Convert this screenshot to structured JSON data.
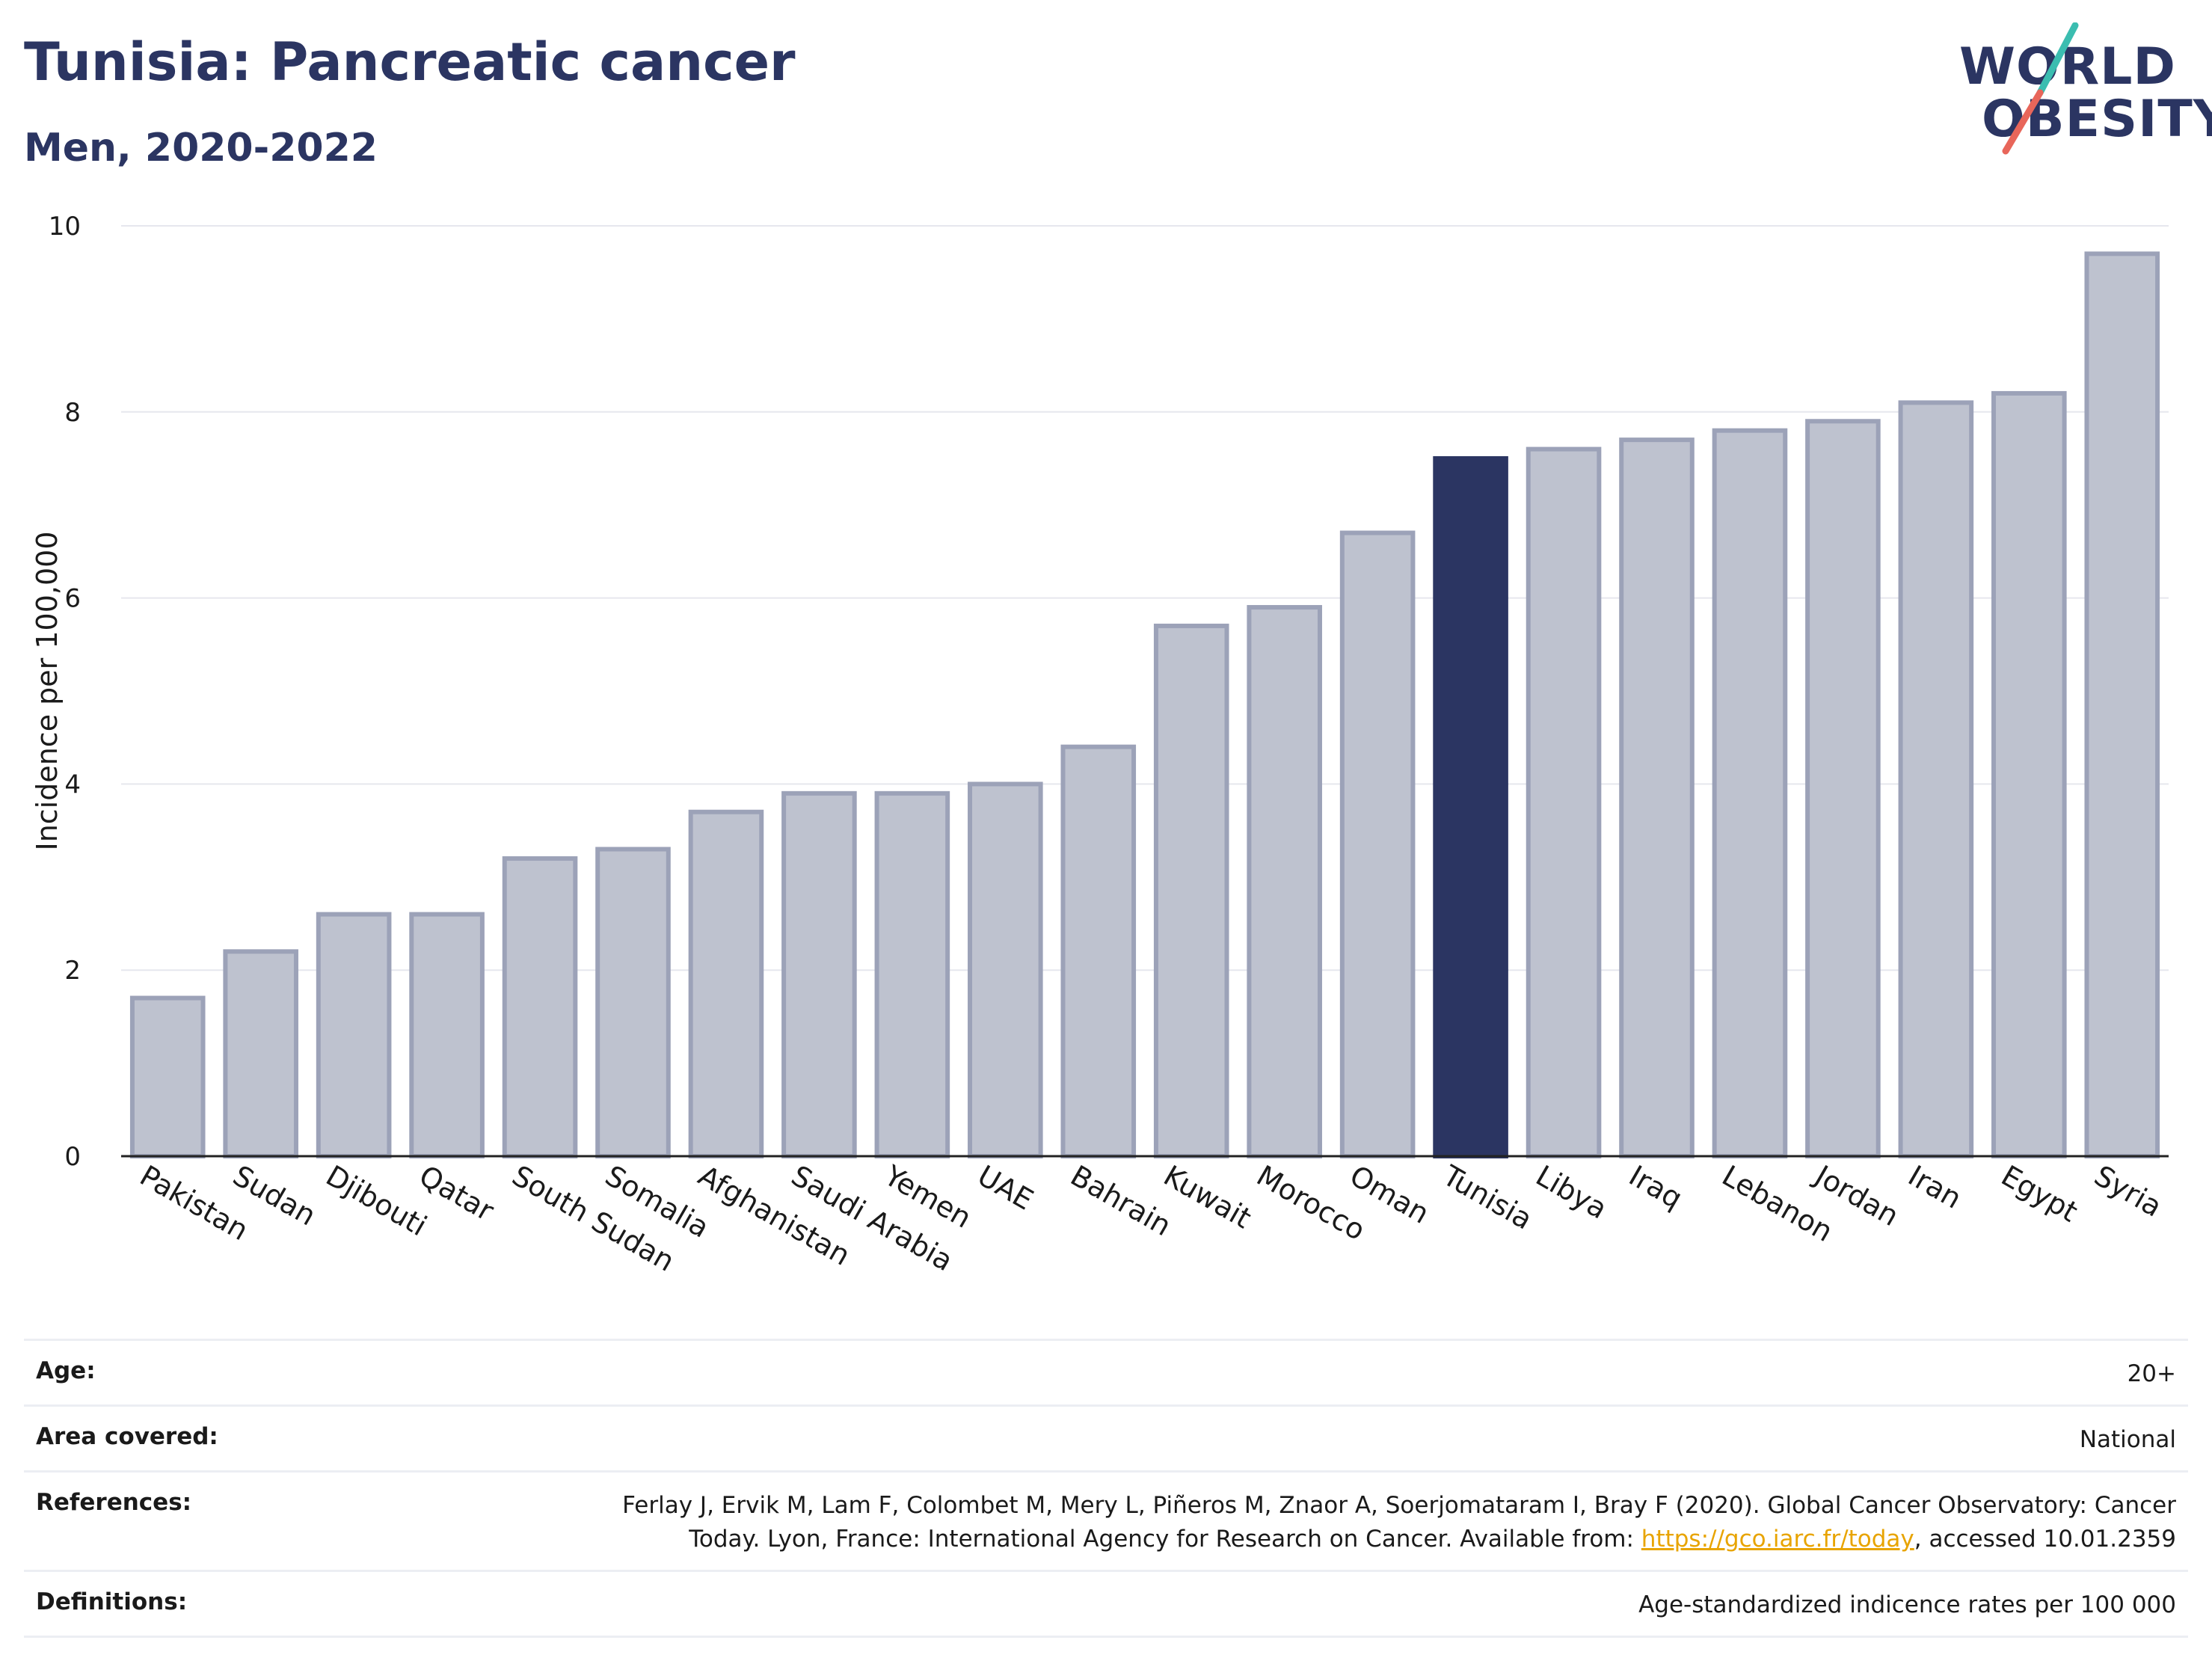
{
  "header": {
    "title": "Tunisia: Pancreatic cancer",
    "subtitle": "Men, 2020-2022"
  },
  "logo": {
    "line1": "WORLD",
    "line2": "OBESITY",
    "accent_colors": [
      "#3bbdb0",
      "#e8665a"
    ]
  },
  "colors": {
    "highlight": "#2b3562",
    "bar_fill": "#bec2cf",
    "bar_stroke": "#9ca2b8",
    "grid": "#e6e7ee",
    "link": "#e8a400"
  },
  "chart_data": {
    "type": "bar",
    "ylabel": "Incidence per 100,000",
    "ylim": [
      0,
      10
    ],
    "yticks": [
      0,
      2,
      4,
      6,
      8,
      10
    ],
    "categories": [
      "Pakistan",
      "Sudan",
      "Djibouti",
      "Qatar",
      "South Sudan",
      "Somalia",
      "Afghanistan",
      "Saudi Arabia",
      "Yemen",
      "UAE",
      "Bahrain",
      "Kuwait",
      "Morocco",
      "Oman",
      "Tunisia",
      "Libya",
      "Iraq",
      "Lebanon",
      "Jordan",
      "Iran",
      "Egypt",
      "Syria"
    ],
    "values": [
      1.7,
      2.2,
      2.6,
      2.6,
      3.2,
      3.3,
      3.7,
      3.9,
      3.9,
      4.0,
      4.4,
      5.7,
      5.9,
      6.7,
      7.5,
      7.6,
      7.7,
      7.8,
      7.9,
      8.1,
      8.2,
      9.7
    ],
    "highlight": "Tunisia",
    "grid": true
  },
  "meta": {
    "age_label": "Age:",
    "age_value": "20+",
    "area_label": "Area covered:",
    "area_value": "National",
    "references_label": "References:",
    "references_line1": "Ferlay J, Ervik M, Lam F, Colombet M, Mery L, Piñeros M, Znaor A, Soerjomataram I, Bray F (2020). Global Cancer Observatory: Cancer",
    "references_line2_pre": "Today. Lyon, France: International Agency for Research on Cancer. Available from: ",
    "references_link": "https://gco.iarc.fr/today",
    "references_line2_post": ", accessed 10.01.2359",
    "definitions_label": "Definitions:",
    "definitions_value": "Age-standardized indicence rates per 100 000"
  }
}
